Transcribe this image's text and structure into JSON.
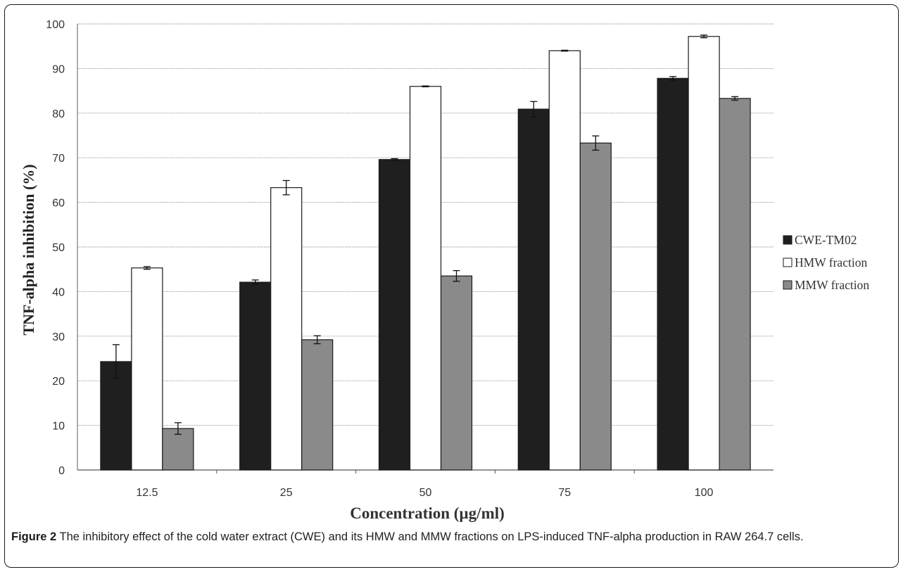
{
  "chart_data": {
    "type": "bar",
    "title": "",
    "xlabel": "Concentration (µg/ml)",
    "ylabel": "TNF-alpha inhibition (%)",
    "ylim": [
      0,
      100
    ],
    "yticks": [
      0,
      10,
      20,
      30,
      40,
      50,
      60,
      70,
      80,
      90,
      100
    ],
    "categories": [
      "12.5",
      "25",
      "50",
      "75",
      "100"
    ],
    "grid": true,
    "legend_position": "right",
    "series": [
      {
        "name": "CWE-TM02",
        "color": "#1f1f1f",
        "values": [
          24.3,
          42.1,
          69.6,
          80.9,
          87.8
        ],
        "errors": [
          3.8,
          0.5,
          0.2,
          1.7,
          0.4
        ]
      },
      {
        "name": "HMW fraction",
        "color": "#ffffff",
        "values": [
          45.3,
          63.3,
          86.0,
          94.0,
          97.2
        ],
        "errors": [
          0.3,
          1.6,
          0.1,
          0.1,
          0.3
        ]
      },
      {
        "name": "MMW fraction",
        "color": "#8a8a8a",
        "values": [
          9.3,
          29.2,
          43.5,
          73.3,
          83.3
        ],
        "errors": [
          1.3,
          0.9,
          1.2,
          1.6,
          0.4
        ]
      }
    ]
  },
  "caption": {
    "label": "Figure 2",
    "text": "The inhibitory effect of the cold water extract (CWE) and its HMW and MMW fractions on LPS-induced TNF-alpha production in RAW 264.7 cells."
  }
}
